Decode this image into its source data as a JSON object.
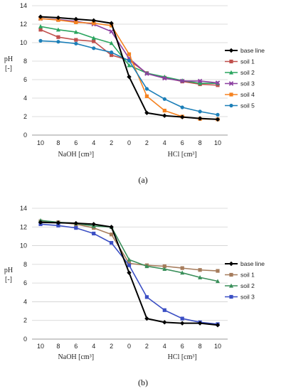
{
  "chart_data": [
    {
      "type": "line",
      "caption": "(a)",
      "categories": [
        "10",
        "8",
        "6",
        "4",
        "2",
        "0",
        "2",
        "4",
        "6",
        "8",
        "10"
      ],
      "ylim": [
        0,
        14
      ],
      "yticks": [
        0,
        2,
        4,
        6,
        8,
        10,
        12,
        14
      ],
      "ylabel_lines": [
        "pH",
        "[-]"
      ],
      "xgroup_labels": [
        "NaOH [cm³]",
        "HCl [cm³]"
      ],
      "grid": true,
      "legend_position": "right",
      "series": [
        {
          "name": "base line",
          "color": "#000000",
          "marker": "diamond",
          "values": [
            12.8,
            12.7,
            12.55,
            12.4,
            12.1,
            6.3,
            2.4,
            2.1,
            1.95,
            1.8,
            1.7
          ]
        },
        {
          "name": "soil 1",
          "color": "#c0504d",
          "marker": "square",
          "values": [
            11.4,
            10.6,
            10.3,
            10.15,
            8.65,
            8.1,
            6.7,
            6.2,
            5.8,
            5.5,
            5.4
          ]
        },
        {
          "name": "soil 2",
          "color": "#2aa55f",
          "marker": "triangle",
          "values": [
            11.75,
            11.4,
            11.15,
            10.5,
            9.95,
            7.55,
            6.7,
            6.3,
            5.9,
            5.6,
            5.6
          ]
        },
        {
          "name": "soil 3",
          "color": "#8b3fa0",
          "marker": "x",
          "values": [
            12.6,
            12.5,
            12.3,
            12.0,
            11.2,
            8.3,
            6.65,
            6.15,
            5.85,
            5.85,
            5.65
          ]
        },
        {
          "name": "soil 4",
          "color": "#f58220",
          "marker": "square",
          "values": [
            12.6,
            12.45,
            12.2,
            12.1,
            11.85,
            8.75,
            4.2,
            2.65,
            2.0,
            1.75,
            1.7
          ]
        },
        {
          "name": "soil 5",
          "color": "#1c7fb8",
          "marker": "circle",
          "values": [
            10.2,
            10.1,
            9.9,
            9.4,
            8.95,
            8.05,
            5.0,
            3.9,
            3.0,
            2.55,
            2.2
          ]
        }
      ]
    },
    {
      "type": "line",
      "caption": "(b)",
      "categories": [
        "10",
        "8",
        "6",
        "4",
        "2",
        "0",
        "2",
        "4",
        "6",
        "8",
        "10"
      ],
      "ylim": [
        0,
        14
      ],
      "yticks": [
        0,
        2,
        4,
        6,
        8,
        10,
        12,
        14
      ],
      "ylabel_lines": [
        "pH",
        "[-]"
      ],
      "xgroup_labels": [
        "NaOH [cm³]",
        "HCl [cm³]"
      ],
      "grid": true,
      "legend_position": "right",
      "series": [
        {
          "name": "base line",
          "color": "#000000",
          "marker": "diamond",
          "values": [
            12.5,
            12.45,
            12.4,
            12.3,
            12.0,
            7.1,
            2.2,
            1.8,
            1.7,
            1.7,
            1.5
          ]
        },
        {
          "name": "soil 1",
          "color": "#a67c5c",
          "marker": "square",
          "values": [
            12.6,
            12.5,
            12.3,
            11.9,
            11.2,
            8.1,
            7.9,
            7.8,
            7.6,
            7.4,
            7.3
          ]
        },
        {
          "name": "soil 2",
          "color": "#3a8f5a",
          "marker": "triangle",
          "values": [
            12.7,
            12.5,
            12.4,
            12.1,
            12.0,
            8.5,
            7.8,
            7.5,
            7.1,
            6.6,
            6.2
          ]
        },
        {
          "name": "soil 3",
          "color": "#3b4fc4",
          "marker": "square",
          "values": [
            12.3,
            12.15,
            11.9,
            11.3,
            10.3,
            7.9,
            4.5,
            3.1,
            2.2,
            1.8,
            1.6
          ]
        }
      ]
    }
  ]
}
